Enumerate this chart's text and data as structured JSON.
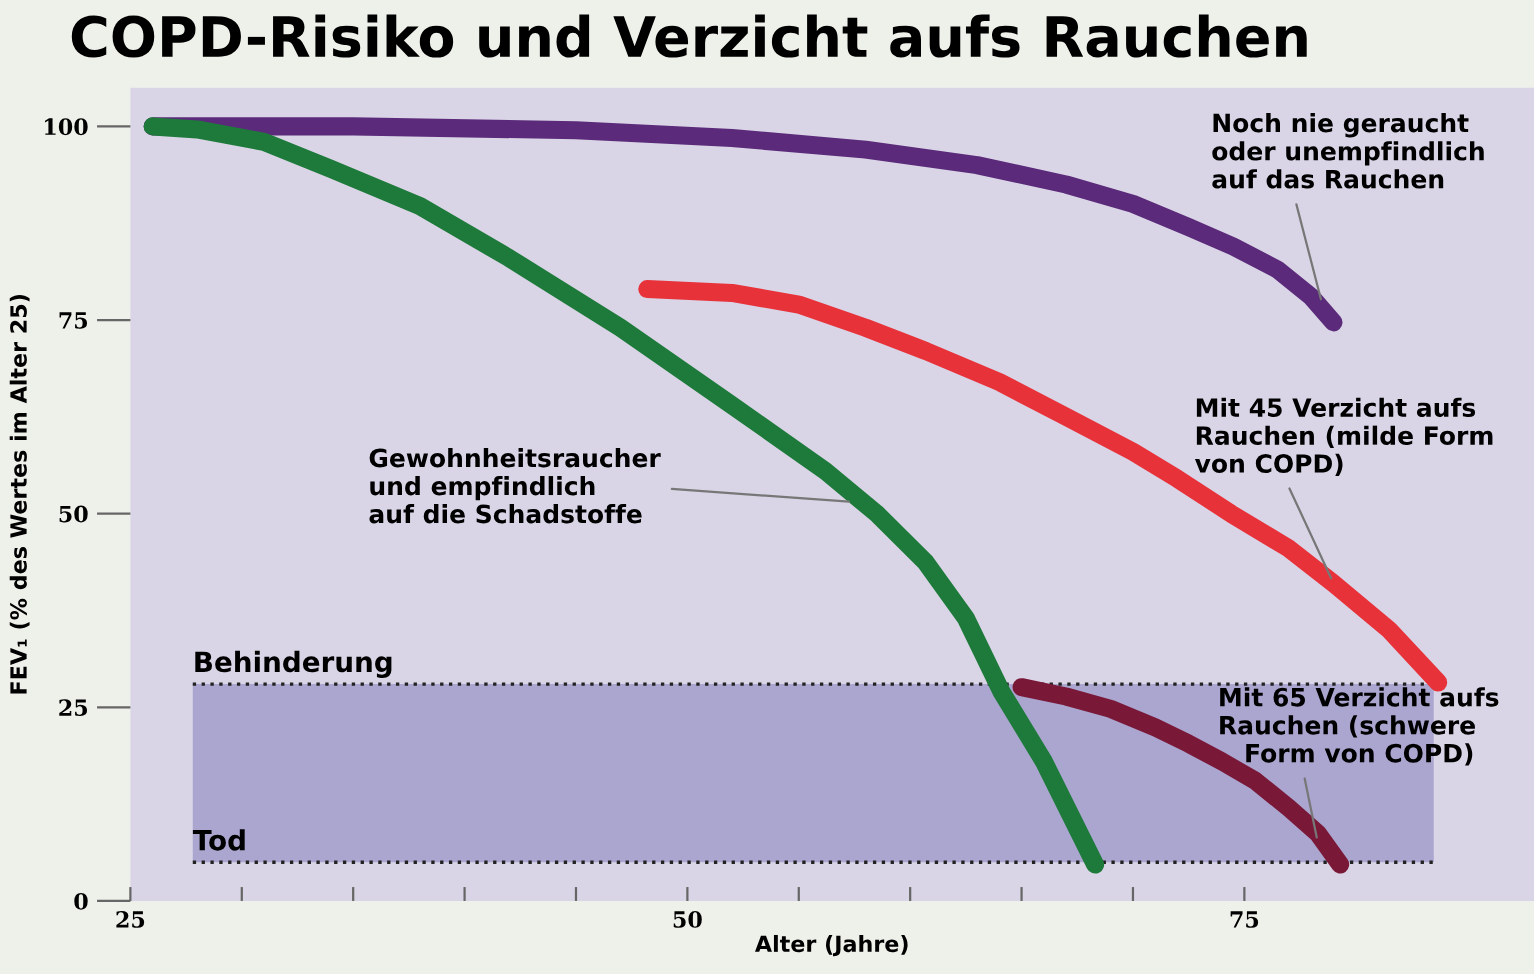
{
  "chart_data": {
    "type": "line",
    "title": "COPD-Risiko und Verzicht aufs Rauchen",
    "xlabel": "Alter (Jahre)",
    "ylabel": "FEV₁ (% des Wertes im Alter 25)",
    "xlim": [
      25,
      88
    ],
    "ylim": [
      0,
      105
    ],
    "xticks": [
      25,
      {
        "value": 30,
        "label": null
      },
      {
        "value": 35,
        "label": null
      },
      {
        "value": 40,
        "label": null
      },
      {
        "value": 45,
        "label": null
      },
      50,
      {
        "value": 55,
        "label": null
      },
      {
        "value": 60,
        "label": null
      },
      {
        "value": 65,
        "label": null
      },
      {
        "value": 70,
        "label": null
      },
      75
    ],
    "yticks": [
      0,
      25,
      50,
      75,
      100
    ],
    "grid": false,
    "marker": "none",
    "line_style": "solid",
    "series": [
      {
        "color": "#5b2a7a",
        "x": [
          26,
          35,
          45,
          52,
          58,
          63,
          67,
          70,
          72.5,
          74.5,
          76.5,
          78,
          79
        ],
        "values": [
          100,
          100,
          99.5,
          98.5,
          97,
          95,
          92.5,
          90,
          87,
          84.5,
          81.5,
          78,
          74.7
        ]
      },
      {
        "color": "#e8323a",
        "x": [
          48.2,
          52,
          55,
          58,
          60.7,
          64,
          67,
          70,
          72,
          74.4,
          77,
          79,
          81.5,
          83.7
        ],
        "values": [
          79,
          78.5,
          77,
          74,
          71,
          67,
          62.5,
          58,
          54.5,
          50,
          45.5,
          41,
          35,
          28.2
        ]
      },
      {
        "color": "#1e7a3a",
        "x": [
          26,
          28,
          31,
          34,
          38,
          42,
          47,
          52,
          56.2,
          58.5,
          60.7,
          62.5,
          64.1,
          66,
          68.3
        ],
        "values": [
          100,
          99.6,
          98,
          94.5,
          89.7,
          83,
          74,
          64,
          55.5,
          50,
          43.7,
          36.5,
          27,
          18,
          4.7
        ]
      },
      {
        "color": "#7a1838",
        "x": [
          65,
          67,
          69,
          71,
          72.5,
          74,
          75.5,
          77,
          78.3,
          79.3
        ],
        "values": [
          27.6,
          26.4,
          24.8,
          22.4,
          20.3,
          18,
          15.5,
          12,
          8.7,
          4.7
        ]
      }
    ],
    "bands": [
      {
        "axis": "y",
        "from": 5,
        "to": 28,
        "color": "#aaa6cf"
      }
    ],
    "ref_lines": [
      {
        "axis": "y",
        "value": 28,
        "label": "Behinderung",
        "line_style": "dotted",
        "color": "#222222"
      },
      {
        "axis": "y",
        "value": 5,
        "label": "Tod",
        "line_style": "dotted",
        "color": "#222222"
      }
    ],
    "annotations": [
      {
        "text": "Noch nie geraucht\noder unempfindlich\nauf das Rauchen",
        "x": 78.5,
        "y": 77
      },
      {
        "text": "Gewohnheitsraucher\nund empfindlich\nauf die Schadstoffe",
        "x": 57.5,
        "y": 51.5
      },
      {
        "text": "Mit 45 Verzicht aufs\nRauchen (milde Form\nvon COPD)",
        "x": 79,
        "y": 41
      },
      {
        "text": "Mit 65 Verzicht aufs\nRauchen (schwere\n   Form von COPD)",
        "x": 78.3,
        "y": 7.5
      }
    ]
  }
}
